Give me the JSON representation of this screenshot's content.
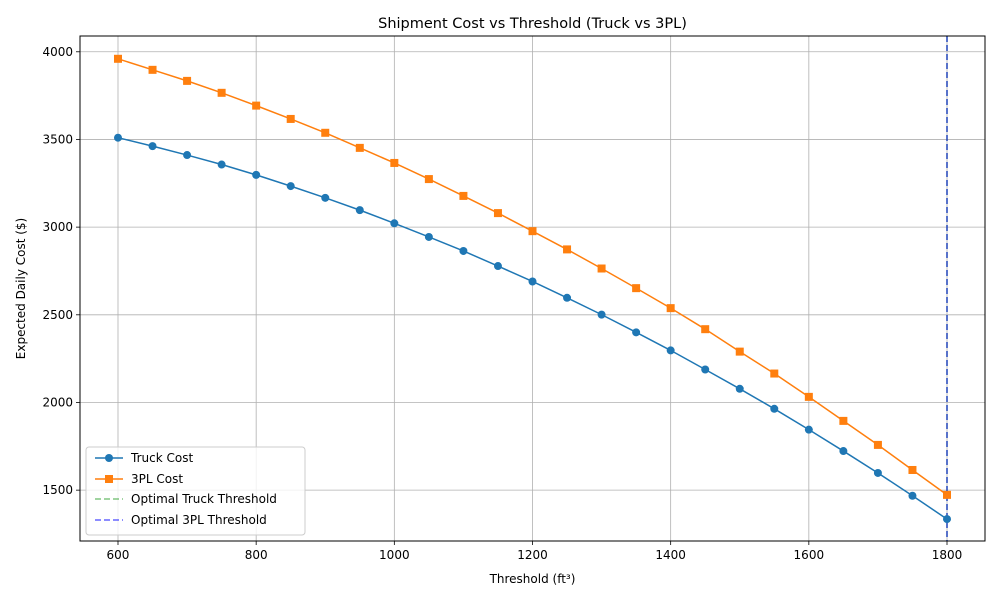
{
  "chart_data": {
    "type": "line",
    "title": "Shipment Cost vs Threshold (Truck vs 3PL)",
    "xlabel": "Threshold (ft³)",
    "ylabel": "Expected Daily Cost ($)",
    "xlim": [
      545,
      1855
    ],
    "ylim": [
      1210,
      4090
    ],
    "x_ticks": [
      600,
      800,
      1000,
      1200,
      1400,
      1600,
      1800
    ],
    "y_ticks": [
      1500,
      2000,
      2500,
      3000,
      3500,
      4000
    ],
    "grid": true,
    "legend_position": "lower-left",
    "x": [
      600,
      650,
      700,
      750,
      800,
      850,
      900,
      950,
      1000,
      1050,
      1100,
      1150,
      1200,
      1250,
      1300,
      1350,
      1400,
      1450,
      1500,
      1550,
      1600,
      1650,
      1700,
      1750,
      1800
    ],
    "series": [
      {
        "name": "Truck Cost",
        "color": "#1f77b4",
        "marker": "circle",
        "values": [
          3510,
          3462,
          3411,
          3357,
          3298,
          3234,
          3167,
          3097,
          3022,
          2944,
          2864,
          2778,
          2690,
          2597,
          2501,
          2400,
          2297,
          2188,
          2078,
          1964,
          1845,
          1723,
          1598,
          1468,
          1335
        ]
      },
      {
        "name": "3PL Cost",
        "color": "#ff7f0e",
        "marker": "square",
        "values": [
          3960,
          3897,
          3834,
          3766,
          3693,
          3617,
          3538,
          3452,
          3366,
          3274,
          3178,
          3080,
          2977,
          2873,
          2764,
          2652,
          2538,
          2418,
          2290,
          2165,
          2032,
          1895,
          1758,
          1615,
          1473
        ]
      }
    ],
    "vlines": [
      {
        "name": "Optimal Truck Threshold",
        "x": 1800,
        "color": "#2ca02c"
      },
      {
        "name": "Optimal 3PL Threshold",
        "x": 1800,
        "color": "#0000ff"
      }
    ]
  }
}
